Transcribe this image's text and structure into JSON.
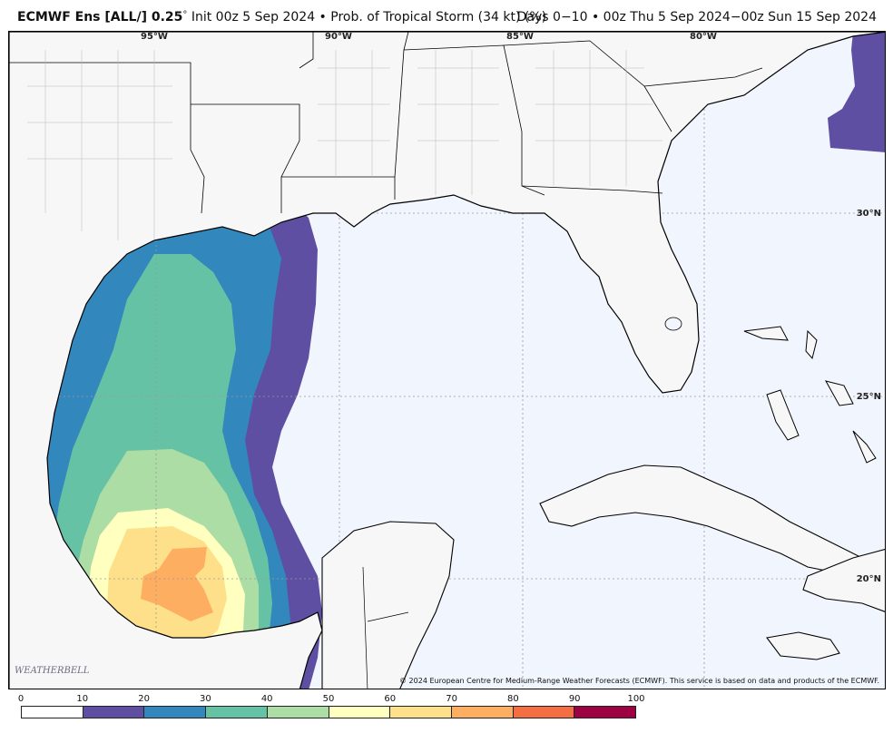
{
  "header": {
    "model": "ECMWF Ens [ALL/] 0.25",
    "degree_sign": "°",
    "subtitle": "Init 00z 5 Sep 2024 • Prob. of Tropical Storm (34 kt) (%)",
    "valid": "Days 0−10 • 00z Thu 5 Sep 2024−00z Sun 15 Sep 2024"
  },
  "map": {
    "lon_labels": [
      "95°W",
      "90°W",
      "85°W",
      "80°W"
    ],
    "lat_labels": [
      "30°N",
      "25°N",
      "20°N"
    ],
    "credit": "© 2024 European Centre for Medium-Range Weather Forecasts (ECMWF). This service is based on data and products of the ECMWF.",
    "logo_text": "WEATHERBELL"
  },
  "legend": {
    "ticks": [
      "0",
      "10",
      "20",
      "30",
      "40",
      "50",
      "60",
      "70",
      "80",
      "90",
      "100"
    ],
    "colors": [
      "#ffffff",
      "#5e4fa2",
      "#3288bd",
      "#66c2a5",
      "#abdda4",
      "#ffffbf",
      "#fee08b",
      "#fdae61",
      "#f46d43",
      "#9e0142"
    ]
  }
}
